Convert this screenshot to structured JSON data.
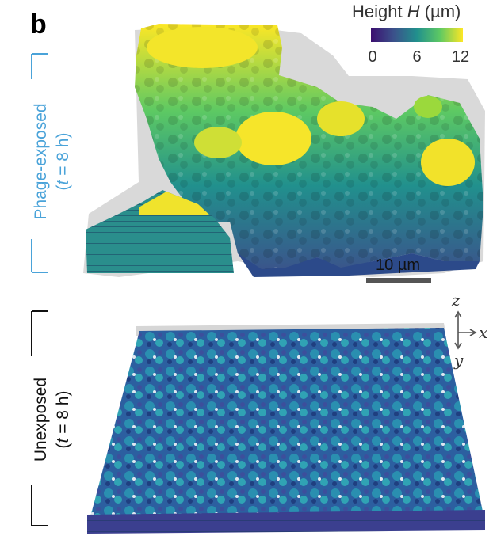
{
  "panel_label": "b",
  "colorbar": {
    "title_prefix": "Height ",
    "title_var": "H",
    "title_unit": " (µm)",
    "ticks": [
      "0",
      "6",
      "12"
    ],
    "colors": [
      "#3b0f70",
      "#3b528b",
      "#21908d",
      "#5dc963",
      "#fde725"
    ]
  },
  "top_panel": {
    "label_line1": "Phage-exposed",
    "label_line2_open": "(",
    "label_line2_var": "t",
    "label_line2_rest": " = 8 h)",
    "label_color": "#4aa3d9",
    "scale_bar_label": "10 µm"
  },
  "bottom_panel": {
    "label_line1": "Unexposed",
    "label_line2_open": "(",
    "label_line2_var": "t",
    "label_line2_rest": " = 8 h)",
    "label_color": "#111111"
  },
  "axes_labels": {
    "z": "z",
    "x": "x",
    "y": "y"
  }
}
